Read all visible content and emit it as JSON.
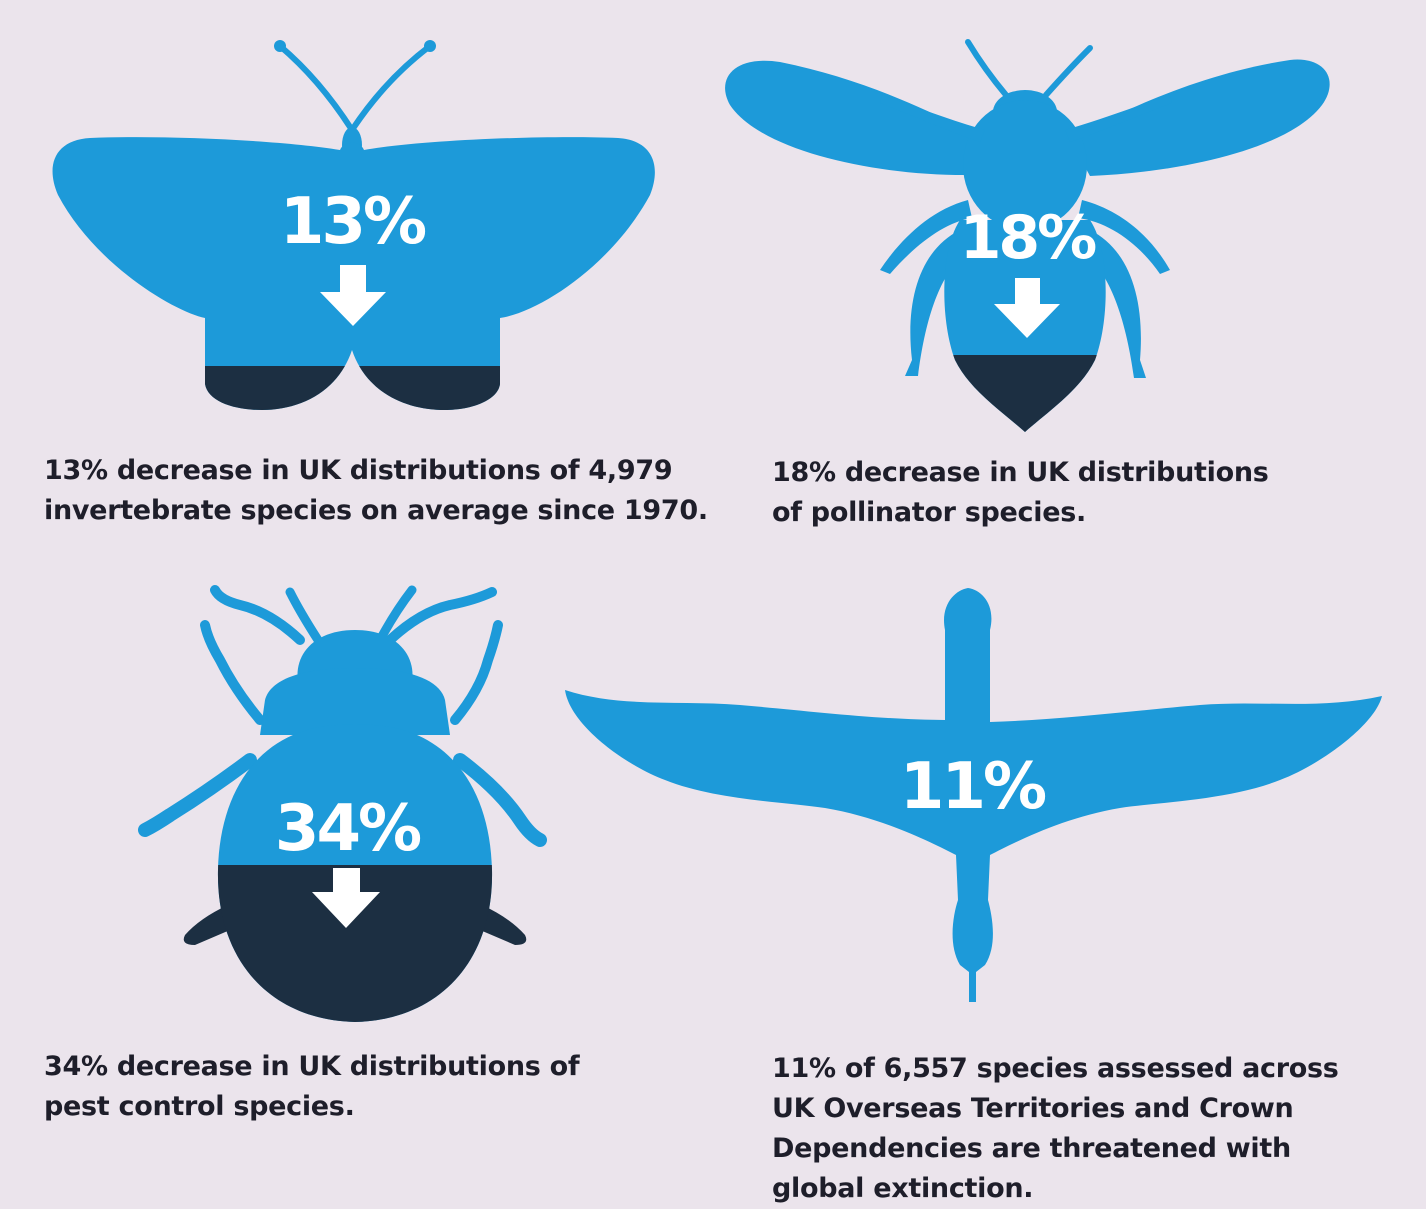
{
  "colors": {
    "background": "#ebe4ec",
    "silhouette": "#1d9ad9",
    "decline": "#1c2f42",
    "text": "#1e1e2a",
    "figure_text": "#ffffff"
  },
  "panels": [
    {
      "id": "butterfly",
      "icon": "butterfly-icon",
      "percent": "13%",
      "declined_fraction": 0.13,
      "has_arrow": true,
      "caption": [
        "13% decrease in UK distributions of 4,979",
        "invertebrate species on average since 1970."
      ]
    },
    {
      "id": "bee",
      "icon": "bee-icon",
      "percent": "18%",
      "declined_fraction": 0.18,
      "has_arrow": true,
      "caption": [
        "18% decrease in UK distributions",
        "of pollinator species."
      ]
    },
    {
      "id": "beetle",
      "icon": "beetle-icon",
      "percent": "34%",
      "declined_fraction": 0.34,
      "has_arrow": true,
      "caption": [
        "34% decrease in UK distributions of",
        "pest control species."
      ]
    },
    {
      "id": "bird",
      "icon": "bird-icon",
      "percent": "11%",
      "declined_fraction": 0.11,
      "has_arrow": false,
      "caption": [
        "11% of 6,557 species assessed across",
        "UK Overseas Territories and Crown",
        "Dependencies are threatened with",
        "global extinction."
      ]
    }
  ]
}
